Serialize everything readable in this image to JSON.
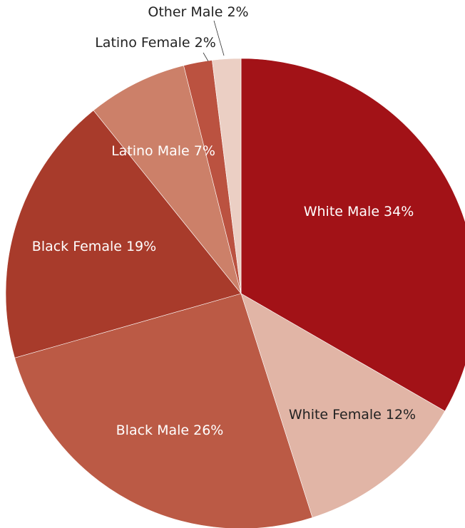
{
  "chart_data": {
    "type": "pie",
    "title": "",
    "start": "top, clockwise",
    "slices": [
      {
        "label": "White Male 34%",
        "value": 34,
        "color": "#a21217",
        "text_color": "#ffffff"
      },
      {
        "label": "White Female 12%",
        "value": 12,
        "color": "#e1b5a6",
        "text_color": "#222222"
      },
      {
        "label": "Black Male 26%",
        "value": 26,
        "color": "#bb5a45",
        "text_color": "#ffffff"
      },
      {
        "label": "Black Female 19%",
        "value": 19,
        "color": "#a83b2b",
        "text_color": "#ffffff"
      },
      {
        "label": "Latino Male 7%",
        "value": 7,
        "color": "#cc8069",
        "text_color": "#ffffff"
      },
      {
        "label": "Latino Female 2%",
        "value": 2,
        "color": "#bb5240",
        "text_color": "#222222"
      },
      {
        "label": "Other Male 2%",
        "value": 2,
        "color": "#ebcfc4",
        "text_color": "#222222"
      }
    ]
  }
}
